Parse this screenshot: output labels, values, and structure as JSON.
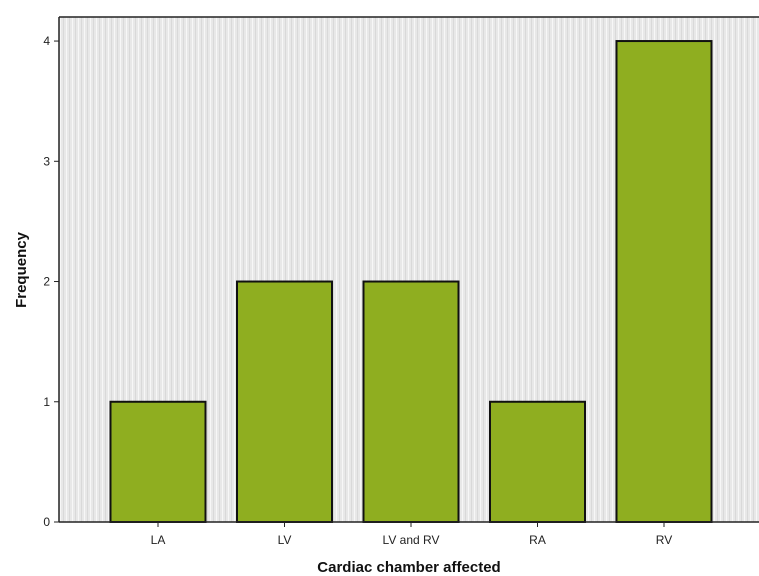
{
  "chart_data": {
    "type": "bar",
    "title": "",
    "xlabel": "Cardiac chamber affected",
    "ylabel": "Frequency",
    "categories": [
      "LA",
      "LV",
      "LV and RV",
      "RA",
      "RV"
    ],
    "values": [
      1,
      2,
      2,
      1,
      4
    ],
    "ylim": [
      0,
      4.2
    ],
    "yticks": [
      0,
      1,
      2,
      3,
      4
    ],
    "grid": false,
    "legend": "none",
    "colors": {
      "bar_fill": "#8fae20",
      "bar_stroke": "#111111",
      "plot_background": "#e6e6e6",
      "axis": "#222222"
    }
  }
}
